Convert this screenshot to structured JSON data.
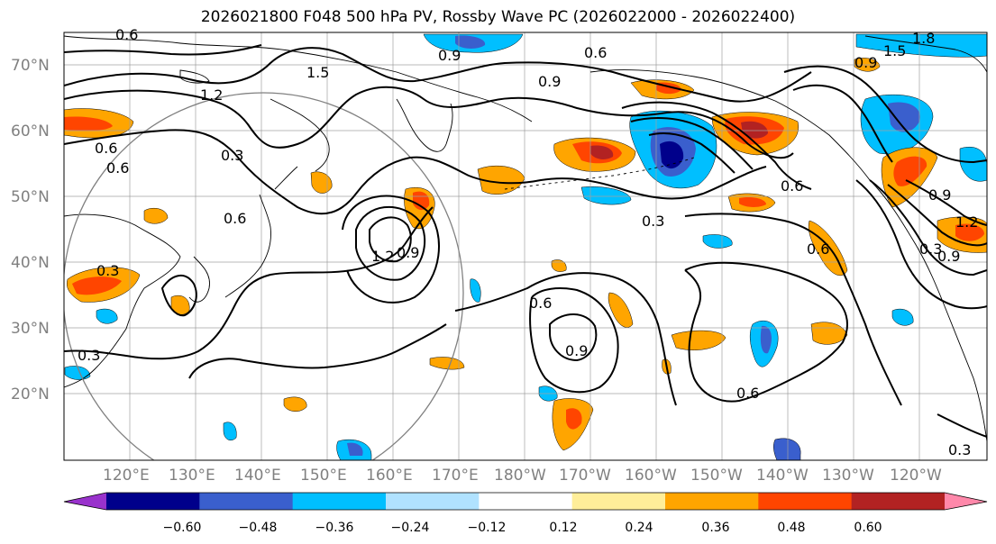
{
  "title": "2026021800 F048 500 hPa PV, Rossby Wave PC (2026022000 - 2026022400)",
  "map": {
    "lat_labels": [
      "70°N",
      "60°N",
      "50°N",
      "40°N",
      "30°N",
      "20°N"
    ],
    "lon_labels": [
      "120°E",
      "130°E",
      "140°E",
      "150°E",
      "160°E",
      "170°E",
      "180°W",
      "170°W",
      "160°W",
      "150°W",
      "140°W",
      "130°W",
      "120°W"
    ],
    "contour_labels": [
      "0.6",
      "0.9",
      "0.6",
      "1.5",
      "1.2",
      "0.9",
      "1.8",
      "1.5",
      "0.9",
      "0.6",
      "0.3",
      "0.9",
      "1.2",
      "0.9",
      "0.6",
      "0.3",
      "0.6",
      "0.9",
      "0.6",
      "0.9",
      "1.2",
      "0.6",
      "0.3",
      "0.3",
      "0.3",
      "0.6",
      "0.3",
      "0.6"
    ]
  },
  "colorbar": {
    "ticks": [
      "−0.60",
      "−0.48",
      "−0.36",
      "−0.24",
      "−0.12",
      "0.12",
      "0.24",
      "0.36",
      "0.48",
      "0.60"
    ],
    "colors": [
      "#9932cc",
      "#00008b",
      "#3a5fcd",
      "#00bfff",
      "#b0e2ff",
      "#ffffff",
      "#ffee99",
      "#ffa500",
      "#ff4500",
      "#b22222",
      "#ff88aa"
    ]
  },
  "colors": {
    "contour": "#000000",
    "coast": "#000000",
    "grid": "#808080"
  }
}
